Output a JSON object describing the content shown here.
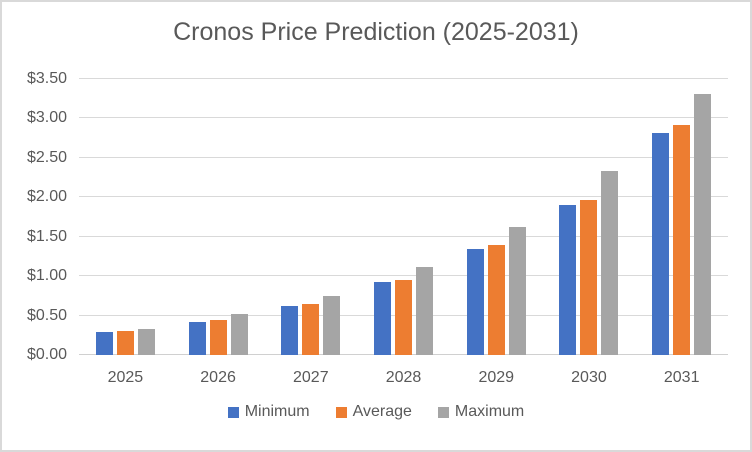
{
  "chart_data": {
    "type": "bar",
    "title": "Cronos Price Prediction (2025-2031)",
    "categories": [
      "2025",
      "2026",
      "2027",
      "2028",
      "2029",
      "2030",
      "2031"
    ],
    "series": [
      {
        "name": "Minimum",
        "color": "#4472C4",
        "values": [
          0.29,
          0.42,
          0.62,
          0.92,
          1.35,
          1.9,
          2.82
        ]
      },
      {
        "name": "Average",
        "color": "#ED7D31",
        "values": [
          0.31,
          0.44,
          0.65,
          0.95,
          1.4,
          1.97,
          2.92
        ]
      },
      {
        "name": "Maximum",
        "color": "#A5A5A5",
        "values": [
          0.33,
          0.52,
          0.75,
          1.11,
          1.62,
          2.33,
          3.31
        ]
      }
    ],
    "xlabel": "",
    "ylabel": "",
    "ylim": [
      0,
      3.5
    ],
    "ytick_step": 0.5,
    "ytick_labels": [
      "$0.00",
      "$0.50",
      "$1.00",
      "$1.50",
      "$2.00",
      "$2.50",
      "$3.00",
      "$3.50"
    ],
    "grid": true,
    "legend_position": "bottom"
  },
  "style": {
    "gridline_color": "#D9D9D9",
    "axis_text_color": "#595959",
    "title_color": "#595959",
    "frame_border_color": "#D9D9D9",
    "background_color": "#FFFFFF"
  }
}
